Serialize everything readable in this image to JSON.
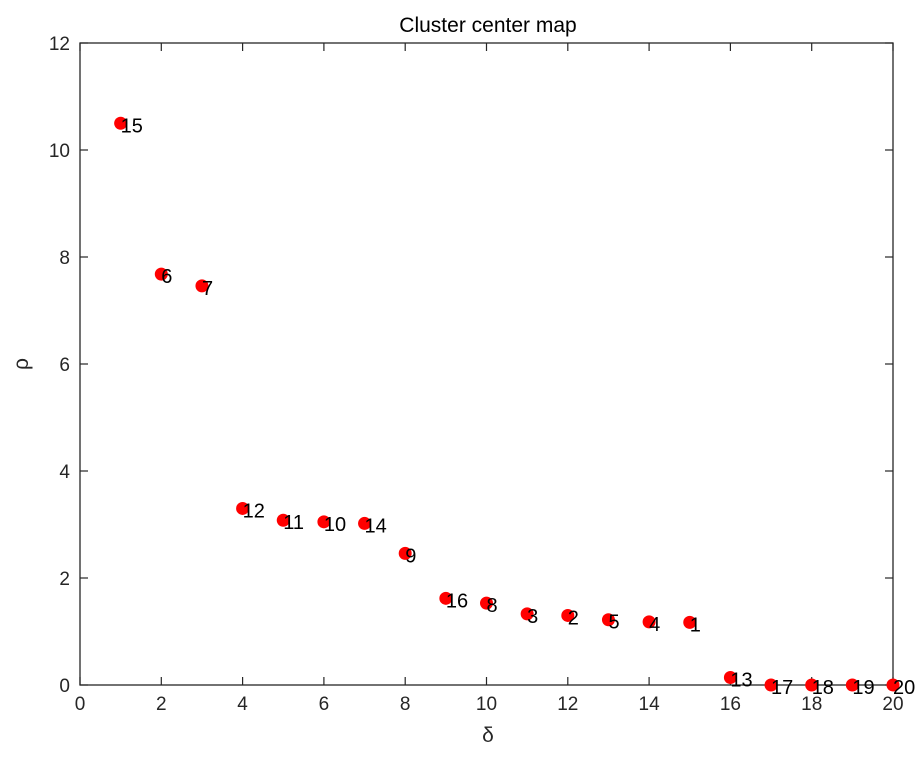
{
  "chart_data": {
    "type": "scatter",
    "title": "Cluster center map",
    "xlabel": "δ",
    "ylabel": "ρ",
    "xlim": [
      0,
      20
    ],
    "ylim": [
      0,
      12
    ],
    "xticks": [
      0,
      2,
      4,
      6,
      8,
      10,
      12,
      14,
      16,
      18,
      20
    ],
    "yticks": [
      0,
      2,
      4,
      6,
      8,
      10,
      12
    ],
    "grid": false,
    "marker_color": "#ff0000",
    "points": [
      {
        "x": 1,
        "y": 10.5,
        "label": "15"
      },
      {
        "x": 2,
        "y": 7.68,
        "label": "6"
      },
      {
        "x": 3,
        "y": 7.46,
        "label": "7"
      },
      {
        "x": 4,
        "y": 3.3,
        "label": "12"
      },
      {
        "x": 5,
        "y": 3.08,
        "label": "11"
      },
      {
        "x": 6,
        "y": 3.05,
        "label": "10"
      },
      {
        "x": 7,
        "y": 3.02,
        "label": "14"
      },
      {
        "x": 8,
        "y": 2.46,
        "label": "9"
      },
      {
        "x": 9,
        "y": 1.62,
        "label": "16"
      },
      {
        "x": 10,
        "y": 1.53,
        "label": "8"
      },
      {
        "x": 11,
        "y": 1.33,
        "label": "3"
      },
      {
        "x": 12,
        "y": 1.3,
        "label": "2"
      },
      {
        "x": 13,
        "y": 1.22,
        "label": "5"
      },
      {
        "x": 14,
        "y": 1.18,
        "label": "4"
      },
      {
        "x": 15,
        "y": 1.17,
        "label": "1"
      },
      {
        "x": 16,
        "y": 0.14,
        "label": "13"
      },
      {
        "x": 17,
        "y": 0.0,
        "label": "17"
      },
      {
        "x": 18,
        "y": 0.0,
        "label": "18"
      },
      {
        "x": 19,
        "y": 0.0,
        "label": "19"
      },
      {
        "x": 20,
        "y": 0.0,
        "label": "20"
      }
    ]
  }
}
